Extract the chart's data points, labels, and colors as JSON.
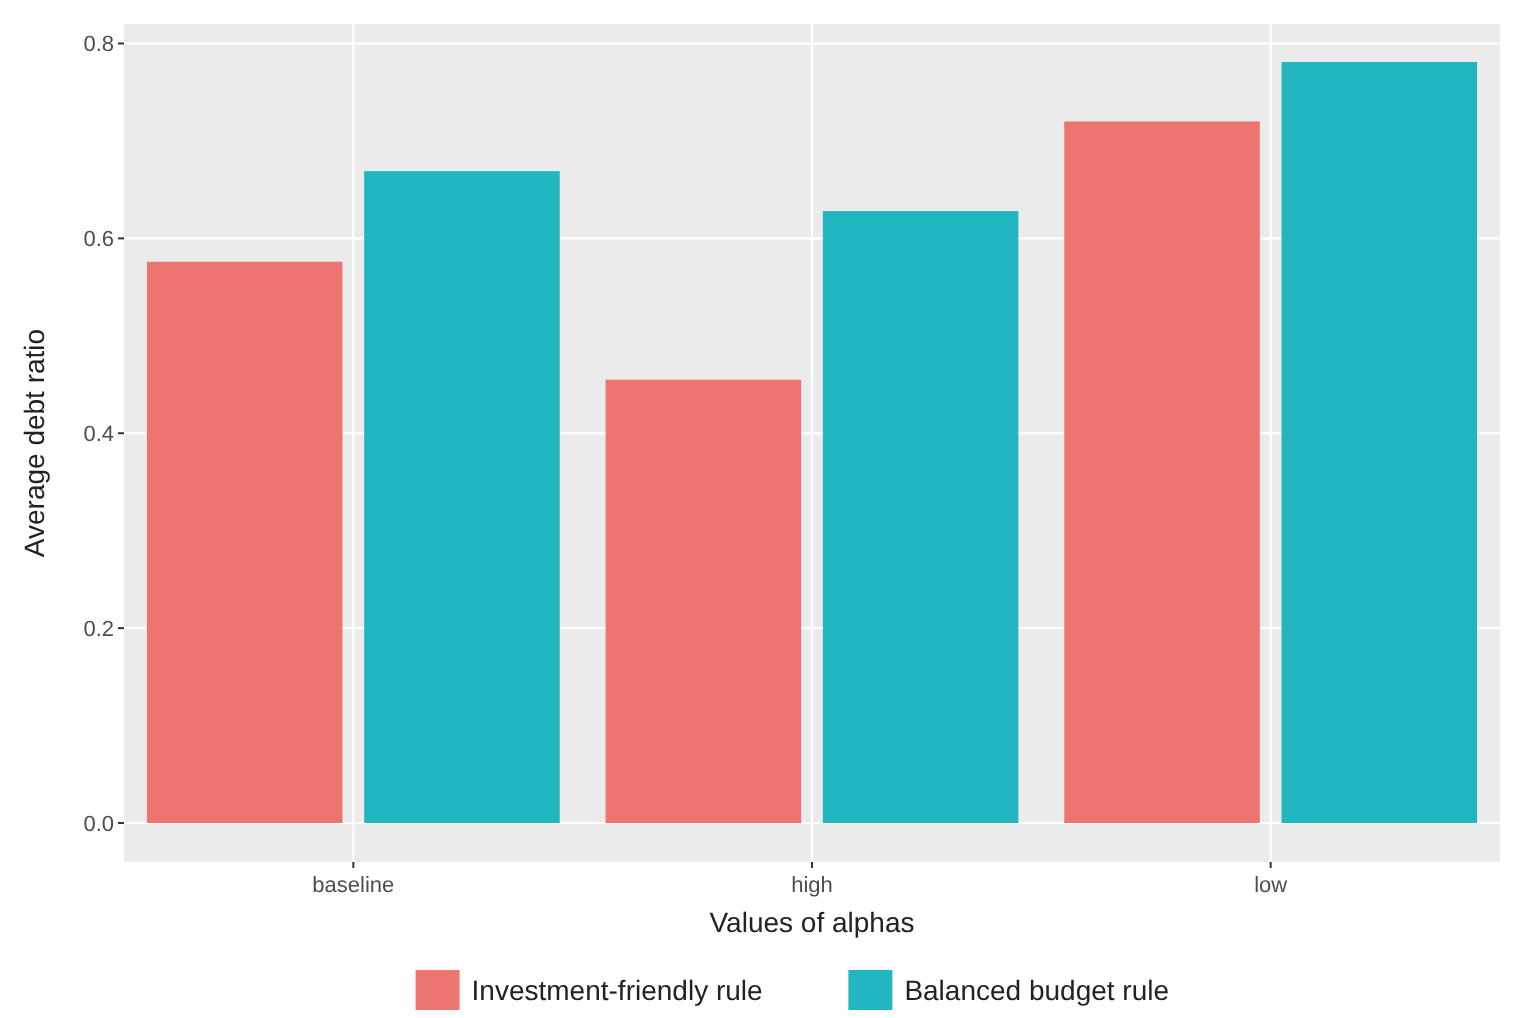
{
  "chart_data": {
    "type": "bar",
    "xlabel": "Values of alphas",
    "ylabel": "Average debt ratio",
    "categories": [
      "baseline",
      "high",
      "low"
    ],
    "series": [
      {
        "name": "Investment-friendly rule",
        "color": "#ee746f",
        "values": [
          0.576,
          0.455,
          0.72
        ]
      },
      {
        "name": "Balanced budget rule",
        "color": "#22b6c0",
        "values": [
          0.669,
          0.628,
          0.781
        ]
      }
    ],
    "ylim": [
      -0.04,
      0.82
    ],
    "yticks": [
      {
        "value": 0,
        "label": "0.0"
      },
      {
        "value": 0.2,
        "label": "0.2"
      },
      {
        "value": 0.4,
        "label": "0.4"
      },
      {
        "value": 0.6,
        "label": "0.6"
      },
      {
        "value": 0.8,
        "label": "0.8"
      }
    ],
    "grid": true,
    "legend": "bottom"
  }
}
